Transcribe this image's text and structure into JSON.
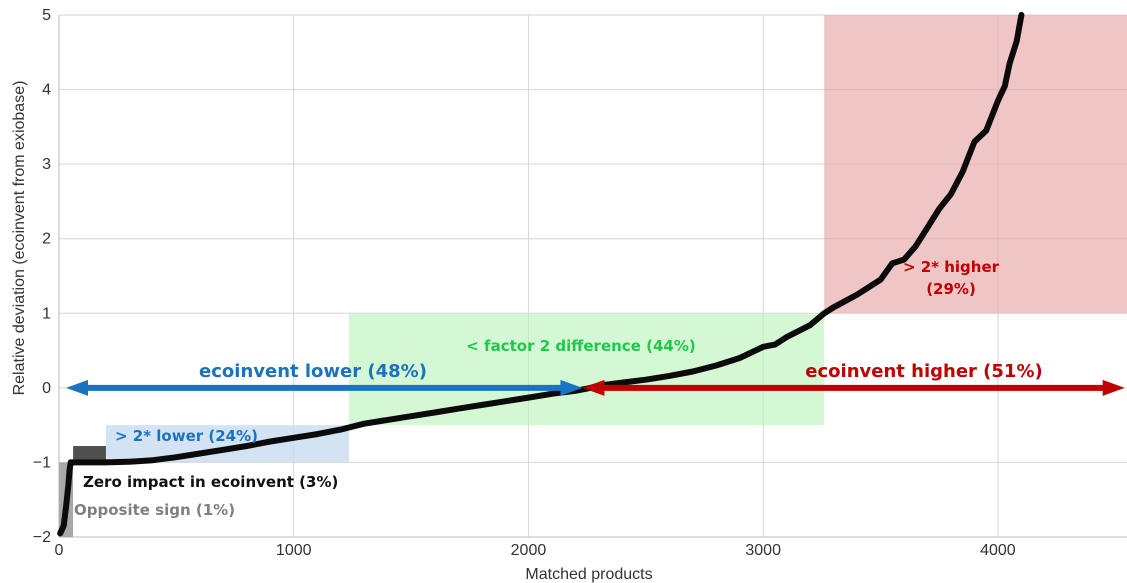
{
  "chart_data": {
    "type": "line",
    "xlabel": "Matched products",
    "ylabel": "Relative deviation (ecoinvent from  exiobase)",
    "xlim": [
      0,
      4550
    ],
    "ylim": [
      -2,
      5
    ],
    "grid": true,
    "xticks": [
      0,
      1000,
      2000,
      3000,
      4000
    ],
    "yticks": [
      -2,
      -1,
      0,
      1,
      2,
      3,
      4,
      5
    ],
    "xtick_labels": [
      "0",
      "1000",
      "2000",
      "3000",
      "4000"
    ],
    "ytick_labels": [
      "−2",
      "−1",
      "0",
      "1",
      "2",
      "3",
      "4",
      "5"
    ],
    "series": [
      {
        "x": [
          5,
          20,
          30,
          40,
          45,
          50,
          60,
          100,
          150,
          200,
          300,
          400,
          500,
          600,
          700,
          800,
          900,
          1000,
          1100,
          1200,
          1250,
          1300,
          1400,
          1500,
          1600,
          1700,
          1800,
          1900,
          2000,
          2100,
          2200,
          2250,
          2300,
          2400,
          2500,
          2600,
          2700,
          2800,
          2900,
          3000,
          3050,
          3100,
          3200,
          3260,
          3300,
          3400,
          3500,
          3550,
          3600,
          3650,
          3700,
          3750,
          3800,
          3850,
          3900,
          3950,
          4000,
          4030,
          4050,
          4080,
          4100
        ],
        "y": [
          -1.95,
          -1.85,
          -1.6,
          -1.3,
          -1.1,
          -1.0,
          -1.0,
          -1.0,
          -1.0,
          -1.0,
          -0.99,
          -0.97,
          -0.93,
          -0.88,
          -0.83,
          -0.78,
          -0.72,
          -0.67,
          -0.62,
          -0.56,
          -0.52,
          -0.48,
          -0.43,
          -0.38,
          -0.33,
          -0.28,
          -0.23,
          -0.18,
          -0.13,
          -0.08,
          -0.04,
          -0.01,
          0.03,
          0.07,
          0.11,
          0.16,
          0.22,
          0.3,
          0.4,
          0.55,
          0.58,
          0.68,
          0.84,
          1.0,
          1.08,
          1.25,
          1.45,
          1.67,
          1.72,
          1.9,
          2.15,
          2.4,
          2.6,
          2.9,
          3.3,
          3.45,
          3.85,
          4.05,
          4.35,
          4.65,
          5.0
        ]
      }
    ],
    "regions": [
      {
        "label": "> 2* higher",
        "pct": "(29%)",
        "x": [
          3260,
          4550
        ],
        "y": [
          1,
          5
        ],
        "color": "#e8a6a8"
      },
      {
        "label": "< factor 2 difference (44%)",
        "x": [
          1235,
          3260
        ],
        "y": [
          -0.5,
          1
        ],
        "color": "#b9f3b7"
      },
      {
        "label": "> 2* lower (24%)",
        "x": [
          200,
          1235
        ],
        "y": [
          -1,
          -0.5
        ],
        "color": "#c6d9ef"
      },
      {
        "label": "Zero impact in ecoinvent (3%)",
        "x": [
          60,
          200
        ],
        "y": [
          -1,
          -0.78
        ],
        "color": "#505050"
      },
      {
        "label": "Opposite sign (1%)",
        "x": [
          0,
          60
        ],
        "y": [
          -2,
          -1
        ],
        "color": "#a8a8a8"
      }
    ],
    "arrows": [
      {
        "label": "ecoinvent lower (48%)",
        "from": 30,
        "to": 2230,
        "y": 0,
        "color": "#1a73c0"
      },
      {
        "label": "ecoinvent higher (51%)",
        "from": 2230,
        "to": 4540,
        "y": 0,
        "color": "#c00000"
      }
    ]
  }
}
